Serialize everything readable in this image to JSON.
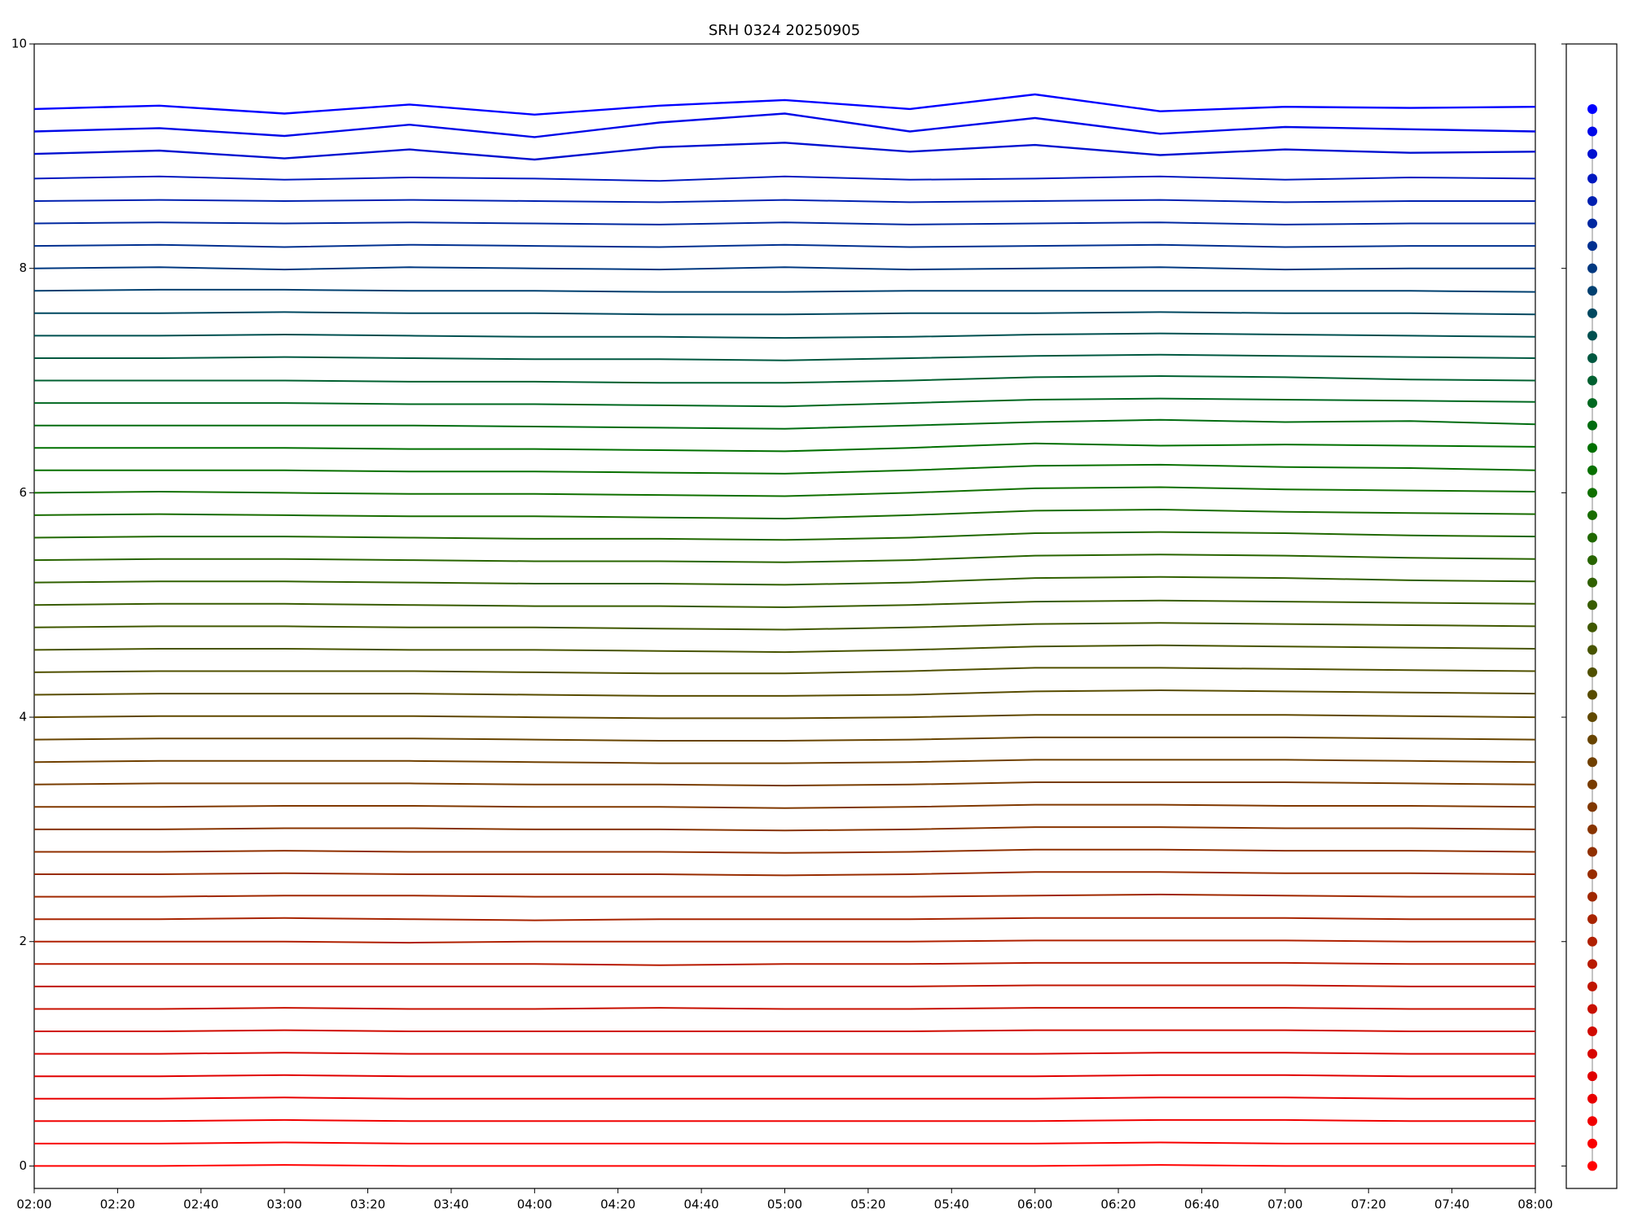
{
  "chart_data": {
    "type": "line",
    "title": "SRH 0324 20250905",
    "x": [
      2,
      2.5,
      3,
      3.5,
      4,
      4.5,
      5,
      5.5,
      6,
      6.5,
      7,
      7.5,
      8
    ],
    "xlim": [
      2,
      8
    ],
    "xticks": [
      {
        "value": 2,
        "label": "02:00"
      },
      {
        "value": 2.3333,
        "label": "02:20"
      },
      {
        "value": 2.6667,
        "label": "02:40"
      },
      {
        "value": 3,
        "label": "03:00"
      },
      {
        "value": 3.3333,
        "label": "03:20"
      },
      {
        "value": 3.6667,
        "label": "03:40"
      },
      {
        "value": 4,
        "label": "04:00"
      },
      {
        "value": 4.3333,
        "label": "04:20"
      },
      {
        "value": 4.6667,
        "label": "04:40"
      },
      {
        "value": 5,
        "label": "05:00"
      },
      {
        "value": 5.3333,
        "label": "05:20"
      },
      {
        "value": 5.6667,
        "label": "05:40"
      },
      {
        "value": 6,
        "label": "06:00"
      },
      {
        "value": 6.3333,
        "label": "06:20"
      },
      {
        "value": 6.6667,
        "label": "06:40"
      },
      {
        "value": 7,
        "label": "07:00"
      },
      {
        "value": 7.3333,
        "label": "07:20"
      },
      {
        "value": 7.6667,
        "label": "07:40"
      },
      {
        "value": 8,
        "label": "08:00"
      }
    ],
    "ylim": [
      -0.2,
      10
    ],
    "yticks": [
      0,
      2,
      4,
      6,
      8,
      10
    ],
    "series": [
      {
        "color": "#ff0000",
        "values": [
          0,
          0,
          0.01,
          0,
          0,
          0,
          0,
          0,
          0,
          0.01,
          0,
          0,
          0
        ]
      },
      {
        "color": "#f80000",
        "values": [
          0.2,
          0.2,
          0.21,
          0.2,
          0.2,
          0.2,
          0.2,
          0.2,
          0.2,
          0.21,
          0.2,
          0.2,
          0.2
        ]
      },
      {
        "color": "#f00000",
        "values": [
          0.4,
          0.4,
          0.41,
          0.4,
          0.4,
          0.4,
          0.4,
          0.4,
          0.4,
          0.41,
          0.41,
          0.4,
          0.4
        ]
      },
      {
        "color": "#e80000",
        "values": [
          0.6,
          0.6,
          0.61,
          0.6,
          0.6,
          0.6,
          0.6,
          0.6,
          0.6,
          0.61,
          0.61,
          0.6,
          0.6
        ]
      },
      {
        "color": "#e00000",
        "values": [
          0.8,
          0.8,
          0.81,
          0.8,
          0.8,
          0.8,
          0.8,
          0.8,
          0.8,
          0.81,
          0.81,
          0.8,
          0.8
        ]
      },
      {
        "color": "#d80500",
        "values": [
          1,
          1,
          1.01,
          1,
          1,
          1,
          1,
          1,
          1,
          1.01,
          1.01,
          1,
          1
        ]
      },
      {
        "color": "#d00a00",
        "values": [
          1.2,
          1.2,
          1.21,
          1.2,
          1.2,
          1.2,
          1.2,
          1.2,
          1.21,
          1.21,
          1.21,
          1.2,
          1.2
        ]
      },
      {
        "color": "#c81000",
        "values": [
          1.4,
          1.4,
          1.41,
          1.4,
          1.4,
          1.41,
          1.4,
          1.4,
          1.41,
          1.41,
          1.41,
          1.4,
          1.4
        ]
      },
      {
        "color": "#c01500",
        "values": [
          1.6,
          1.6,
          1.6,
          1.6,
          1.6,
          1.6,
          1.6,
          1.6,
          1.61,
          1.61,
          1.61,
          1.6,
          1.6
        ]
      },
      {
        "color": "#b81a00",
        "values": [
          1.8,
          1.8,
          1.8,
          1.8,
          1.8,
          1.79,
          1.8,
          1.8,
          1.81,
          1.81,
          1.81,
          1.8,
          1.8
        ]
      },
      {
        "color": "#b02000",
        "values": [
          2,
          2,
          2,
          1.99,
          2,
          2,
          2,
          2,
          2.01,
          2.01,
          2.01,
          2,
          2
        ]
      },
      {
        "color": "#a82400",
        "values": [
          2.2,
          2.2,
          2.21,
          2.2,
          2.19,
          2.2,
          2.2,
          2.2,
          2.21,
          2.21,
          2.21,
          2.2,
          2.2
        ]
      },
      {
        "color": "#a02800",
        "values": [
          2.4,
          2.4,
          2.41,
          2.41,
          2.4,
          2.4,
          2.4,
          2.4,
          2.41,
          2.42,
          2.41,
          2.4,
          2.4
        ]
      },
      {
        "color": "#982c00",
        "values": [
          2.6,
          2.6,
          2.61,
          2.6,
          2.6,
          2.6,
          2.59,
          2.6,
          2.62,
          2.62,
          2.61,
          2.61,
          2.6
        ]
      },
      {
        "color": "#903000",
        "values": [
          2.8,
          2.8,
          2.81,
          2.8,
          2.8,
          2.8,
          2.79,
          2.8,
          2.82,
          2.82,
          2.81,
          2.81,
          2.8
        ]
      },
      {
        "color": "#883400",
        "values": [
          3,
          3,
          3.01,
          3.01,
          3,
          3,
          2.99,
          3,
          3.02,
          3.02,
          3.01,
          3.01,
          3
        ]
      },
      {
        "color": "#803800",
        "values": [
          3.2,
          3.2,
          3.21,
          3.21,
          3.2,
          3.2,
          3.19,
          3.2,
          3.22,
          3.22,
          3.21,
          3.21,
          3.2
        ]
      },
      {
        "color": "#783c00",
        "values": [
          3.4,
          3.41,
          3.41,
          3.41,
          3.4,
          3.4,
          3.39,
          3.4,
          3.42,
          3.42,
          3.42,
          3.41,
          3.4
        ]
      },
      {
        "color": "#704000",
        "values": [
          3.6,
          3.61,
          3.61,
          3.61,
          3.6,
          3.59,
          3.59,
          3.6,
          3.62,
          3.62,
          3.62,
          3.61,
          3.6
        ]
      },
      {
        "color": "#684400",
        "values": [
          3.8,
          3.81,
          3.81,
          3.81,
          3.8,
          3.79,
          3.79,
          3.8,
          3.82,
          3.82,
          3.82,
          3.81,
          3.8
        ]
      },
      {
        "color": "#604800",
        "values": [
          4,
          4.01,
          4.01,
          4.01,
          4,
          3.99,
          3.99,
          4,
          4.02,
          4.02,
          4.02,
          4.01,
          4
        ]
      },
      {
        "color": "#584c00",
        "values": [
          4.2,
          4.21,
          4.21,
          4.21,
          4.2,
          4.19,
          4.19,
          4.2,
          4.23,
          4.24,
          4.23,
          4.22,
          4.21
        ]
      },
      {
        "color": "#505000",
        "values": [
          4.4,
          4.41,
          4.41,
          4.41,
          4.4,
          4.39,
          4.39,
          4.41,
          4.44,
          4.44,
          4.43,
          4.42,
          4.41
        ]
      },
      {
        "color": "#485400",
        "values": [
          4.6,
          4.61,
          4.61,
          4.6,
          4.6,
          4.59,
          4.58,
          4.6,
          4.63,
          4.64,
          4.63,
          4.62,
          4.61
        ]
      },
      {
        "color": "#405800",
        "values": [
          4.8,
          4.81,
          4.81,
          4.8,
          4.8,
          4.79,
          4.78,
          4.8,
          4.83,
          4.84,
          4.83,
          4.82,
          4.81
        ]
      },
      {
        "color": "#385c00",
        "values": [
          5,
          5.01,
          5.01,
          5,
          4.99,
          4.99,
          4.98,
          5,
          5.03,
          5.04,
          5.03,
          5.02,
          5.01
        ]
      },
      {
        "color": "#306000",
        "values": [
          5.2,
          5.21,
          5.21,
          5.2,
          5.19,
          5.19,
          5.18,
          5.2,
          5.24,
          5.25,
          5.24,
          5.22,
          5.21
        ]
      },
      {
        "color": "#286400",
        "values": [
          5.4,
          5.41,
          5.41,
          5.4,
          5.39,
          5.39,
          5.38,
          5.4,
          5.44,
          5.45,
          5.44,
          5.42,
          5.41
        ]
      },
      {
        "color": "#206800",
        "values": [
          5.6,
          5.61,
          5.61,
          5.6,
          5.59,
          5.59,
          5.58,
          5.6,
          5.64,
          5.65,
          5.64,
          5.62,
          5.61
        ]
      },
      {
        "color": "#186c00",
        "values": [
          5.8,
          5.81,
          5.8,
          5.79,
          5.79,
          5.78,
          5.77,
          5.8,
          5.84,
          5.85,
          5.83,
          5.82,
          5.81
        ]
      },
      {
        "color": "#107000",
        "values": [
          6,
          6.01,
          6,
          5.99,
          5.99,
          5.98,
          5.97,
          6,
          6.04,
          6.05,
          6.03,
          6.02,
          6.01
        ]
      },
      {
        "color": "#087000",
        "values": [
          6.2,
          6.2,
          6.2,
          6.19,
          6.19,
          6.18,
          6.17,
          6.2,
          6.24,
          6.25,
          6.23,
          6.22,
          6.2
        ]
      },
      {
        "color": "#007000",
        "values": [
          6.4,
          6.4,
          6.4,
          6.39,
          6.39,
          6.38,
          6.37,
          6.4,
          6.44,
          6.42,
          6.43,
          6.42,
          6.41
        ]
      },
      {
        "color": "#006c10",
        "values": [
          6.6,
          6.6,
          6.6,
          6.6,
          6.59,
          6.58,
          6.57,
          6.6,
          6.63,
          6.65,
          6.63,
          6.64,
          6.61
        ]
      },
      {
        "color": "#006820",
        "values": [
          6.8,
          6.8,
          6.8,
          6.79,
          6.79,
          6.78,
          6.77,
          6.8,
          6.83,
          6.84,
          6.83,
          6.82,
          6.81
        ]
      },
      {
        "color": "#006030",
        "values": [
          7,
          7,
          7,
          6.99,
          6.99,
          6.98,
          6.98,
          7,
          7.03,
          7.04,
          7.03,
          7.01,
          7
        ]
      },
      {
        "color": "#005840",
        "values": [
          7.2,
          7.2,
          7.21,
          7.2,
          7.19,
          7.19,
          7.18,
          7.2,
          7.22,
          7.23,
          7.22,
          7.21,
          7.2
        ]
      },
      {
        "color": "#005050",
        "values": [
          7.4,
          7.4,
          7.41,
          7.4,
          7.39,
          7.39,
          7.38,
          7.39,
          7.41,
          7.42,
          7.41,
          7.4,
          7.39
        ]
      },
      {
        "color": "#004860",
        "values": [
          7.6,
          7.6,
          7.61,
          7.6,
          7.6,
          7.59,
          7.59,
          7.6,
          7.6,
          7.61,
          7.6,
          7.6,
          7.59
        ]
      },
      {
        "color": "#004070",
        "values": [
          7.8,
          7.81,
          7.81,
          7.8,
          7.8,
          7.79,
          7.79,
          7.8,
          7.8,
          7.8,
          7.8,
          7.8,
          7.79
        ]
      },
      {
        "color": "#003880",
        "values": [
          8,
          8.01,
          7.99,
          8.01,
          8,
          7.99,
          8.01,
          7.99,
          8,
          8.01,
          7.99,
          8,
          8
        ]
      },
      {
        "color": "#003090",
        "values": [
          8.2,
          8.21,
          8.19,
          8.21,
          8.2,
          8.19,
          8.21,
          8.19,
          8.2,
          8.21,
          8.19,
          8.2,
          8.2
        ]
      },
      {
        "color": "#0028a0",
        "values": [
          8.4,
          8.41,
          8.4,
          8.41,
          8.4,
          8.39,
          8.41,
          8.39,
          8.4,
          8.41,
          8.39,
          8.4,
          8.4
        ]
      },
      {
        "color": "#0020b0",
        "values": [
          8.6,
          8.61,
          8.6,
          8.61,
          8.6,
          8.59,
          8.61,
          8.59,
          8.6,
          8.61,
          8.59,
          8.6,
          8.6
        ]
      },
      {
        "color": "#0018c0",
        "values": [
          8.8,
          8.82,
          8.79,
          8.81,
          8.8,
          8.78,
          8.82,
          8.79,
          8.8,
          8.82,
          8.79,
          8.81,
          8.8
        ]
      },
      {
        "color": "#0010d0",
        "values": [
          9.02,
          9.05,
          8.98,
          9.06,
          8.97,
          9.08,
          9.12,
          9.04,
          9.1,
          9.01,
          9.06,
          9.03,
          9.04
        ]
      },
      {
        "color": "#0008e8",
        "values": [
          9.22,
          9.25,
          9.18,
          9.28,
          9.17,
          9.3,
          9.38,
          9.22,
          9.34,
          9.2,
          9.26,
          9.24,
          9.22
        ]
      },
      {
        "color": "#0000ff",
        "values": [
          9.42,
          9.45,
          9.38,
          9.46,
          9.37,
          9.45,
          9.5,
          9.42,
          9.55,
          9.4,
          9.44,
          9.43,
          9.44
        ]
      }
    ]
  }
}
